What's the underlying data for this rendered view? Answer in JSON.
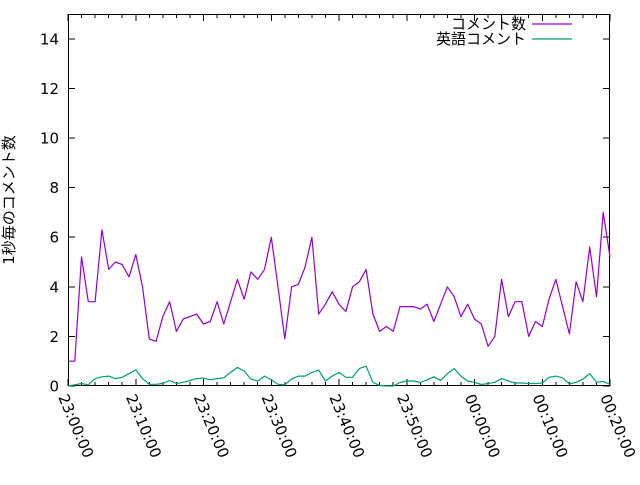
{
  "page": {
    "background": "#ffffff"
  },
  "chart_data": {
    "type": "line",
    "title": "",
    "xlabel": "",
    "ylabel": "1秒毎のコメント数",
    "grid": false,
    "legend_position": "top-right-inside",
    "sample_interval_minutes": 1,
    "x_axis": {
      "span_minutes": 80,
      "major_tick_interval_minutes": 10,
      "minor_tick_interval_minutes": 2,
      "labels_rotation_deg": 67,
      "tick_labels": [
        "23:00:00",
        "23:10:00",
        "23:20:00",
        "23:30:00",
        "23:40:00",
        "23:50:00",
        "00:00:00",
        "00:10:00",
        "00:20:00"
      ]
    },
    "y_axis": {
      "range": [
        0,
        15
      ],
      "major_tick_step": 2,
      "tick_labels": [
        "0",
        "2",
        "4",
        "6",
        "8",
        "10",
        "12",
        "14"
      ]
    },
    "series": [
      {
        "name": "コメント数",
        "color": "#9400d3",
        "values": [
          1,
          1,
          5.2,
          3.4,
          3.4,
          6.3,
          4.7,
          5,
          4.9,
          4.4,
          5.3,
          4,
          1.9,
          1.8,
          2.8,
          3.4,
          2.2,
          2.7,
          2.8,
          2.9,
          2.5,
          2.6,
          3.4,
          2.5,
          3.4,
          4.3,
          3.5,
          4.6,
          4.3,
          4.7,
          6,
          4,
          1.9,
          4,
          4.1,
          4.8,
          6,
          2.9,
          3.3,
          3.8,
          3.3,
          3,
          4,
          4.2,
          4.7,
          2.9,
          2.2,
          2.4,
          2.2,
          3.2,
          3.2,
          3.2,
          3.1,
          3.3,
          2.6,
          3.3,
          4,
          3.6,
          2.8,
          3.3,
          2.7,
          2.5,
          1.6,
          2,
          4.3,
          2.8,
          3.4,
          3.4,
          2,
          2.6,
          2.4,
          3.5,
          4.3,
          3.2,
          2.1,
          4.2,
          3.4,
          5.6,
          3.6,
          7,
          5.2
        ]
      },
      {
        "name": "英語コメント",
        "color": "#009e73",
        "values": [
          0,
          0.05,
          0.1,
          0.05,
          0.3,
          0.37,
          0.4,
          0.3,
          0.35,
          0.5,
          0.65,
          0.3,
          0.07,
          0.07,
          0.1,
          0.22,
          0.1,
          0.15,
          0.22,
          0.3,
          0.32,
          0.25,
          0.3,
          0.33,
          0.55,
          0.75,
          0.6,
          0.28,
          0.2,
          0.4,
          0.25,
          0.07,
          0.05,
          0.28,
          0.4,
          0.4,
          0.55,
          0.64,
          0.2,
          0.4,
          0.55,
          0.35,
          0.35,
          0.7,
          0.8,
          0.15,
          0.02,
          0,
          0,
          0.14,
          0.2,
          0.2,
          0.14,
          0.25,
          0.37,
          0.22,
          0.5,
          0.7,
          0.4,
          0.2,
          0.15,
          0.06,
          0.1,
          0.15,
          0.3,
          0.2,
          0.12,
          0.12,
          0.1,
          0.1,
          0.12,
          0.35,
          0.4,
          0.33,
          0.08,
          0.15,
          0.28,
          0.5,
          0.15,
          0.18,
          0.07
        ]
      }
    ]
  }
}
